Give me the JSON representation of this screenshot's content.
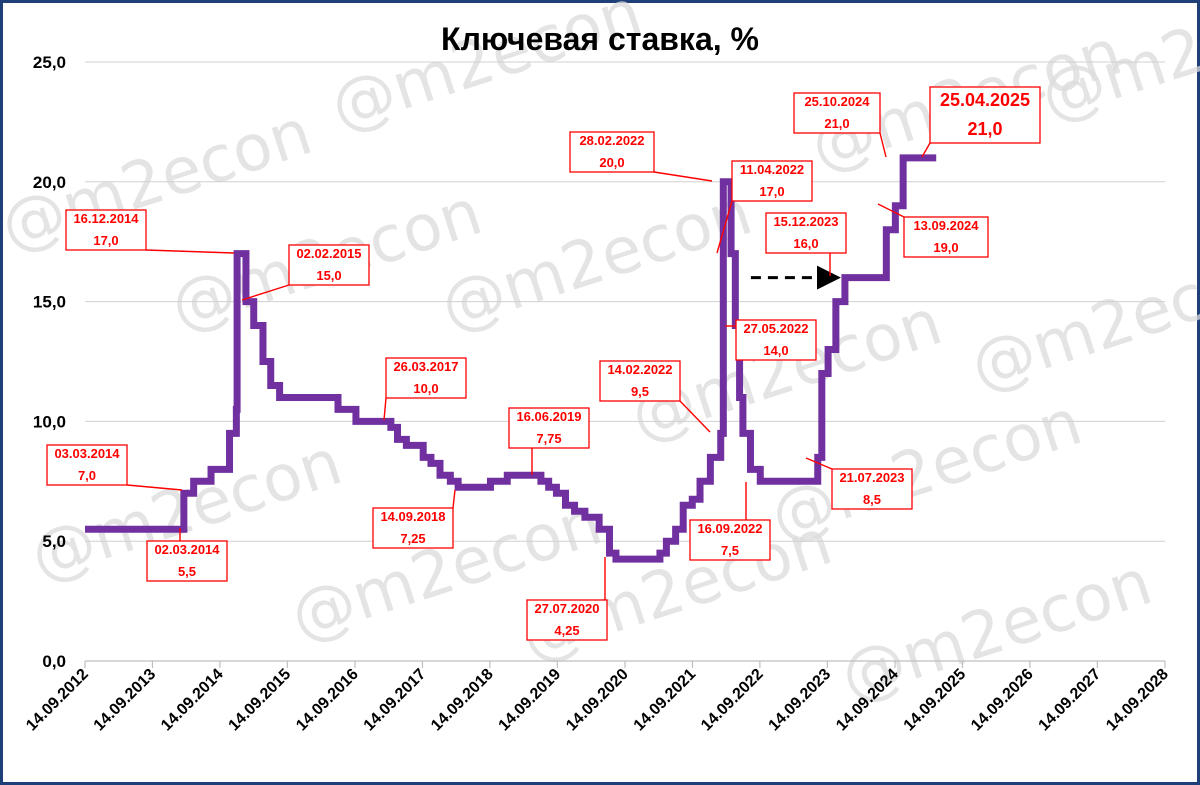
{
  "chart_data": {
    "type": "line",
    "title": "Ключевая ставка, %",
    "watermark": "@m2econ",
    "ylim": [
      0,
      25
    ],
    "yticks": [
      "0,0",
      "5,0",
      "10,0",
      "15,0",
      "20,0",
      "25,0"
    ],
    "xticks": [
      "14.09.2012",
      "14.09.2013",
      "14.09.2014",
      "14.09.2015",
      "14.09.2016",
      "14.09.2017",
      "14.09.2018",
      "14.09.2019",
      "14.09.2020",
      "14.09.2021",
      "14.09.2022",
      "14.09.2023",
      "14.09.2024",
      "14.09.2025",
      "14.09.2026",
      "14.09.2027",
      "14.09.2028"
    ],
    "grid": true,
    "colors": {
      "line": "#7030a0",
      "annotation": "#ff0000",
      "arrow": "#000000",
      "frame": "#1f3f78"
    },
    "series": [
      {
        "x": [
          "2012-09-14",
          "2014-03-02",
          "2014-03-03",
          "2014-04-25",
          "2014-07-28",
          "2014-11-05",
          "2014-12-12",
          "2014-12-16",
          "2015-02-02",
          "2015-03-16",
          "2015-05-05",
          "2015-06-16",
          "2015-08-03",
          "2016-06-14",
          "2016-09-19",
          "2017-03-27",
          "2017-05-02",
          "2017-06-19",
          "2017-09-18",
          "2017-10-30",
          "2017-12-18",
          "2018-02-12",
          "2018-03-26",
          "2018-09-17",
          "2018-12-17",
          "2019-06-17",
          "2019-07-29",
          "2019-09-09",
          "2019-10-28",
          "2019-12-16",
          "2020-02-10",
          "2020-04-27",
          "2020-06-22",
          "2020-07-27",
          "2021-03-22",
          "2021-04-26",
          "2021-06-15",
          "2021-07-26",
          "2021-09-13",
          "2021-10-25",
          "2021-12-20",
          "2022-02-14",
          "2022-02-28",
          "2022-04-11",
          "2022-05-04",
          "2022-05-27",
          "2022-06-14",
          "2022-07-25",
          "2022-09-16",
          "2023-07-24",
          "2023-08-15",
          "2023-09-18",
          "2023-10-30",
          "2023-12-18",
          "2024-07-29",
          "2024-09-16",
          "2024-10-28",
          "2025-04-25"
        ],
        "y": [
          5.5,
          5.5,
          7.0,
          7.5,
          8.0,
          9.5,
          10.5,
          17.0,
          15.0,
          14.0,
          12.5,
          11.5,
          11.0,
          10.5,
          10.0,
          9.75,
          9.25,
          9.0,
          8.5,
          8.25,
          7.75,
          7.5,
          7.25,
          7.5,
          7.75,
          7.5,
          7.25,
          7.0,
          6.5,
          6.25,
          6.0,
          5.5,
          4.5,
          4.25,
          4.5,
          5.0,
          5.5,
          6.5,
          6.75,
          7.5,
          8.5,
          9.5,
          20.0,
          17.0,
          14.0,
          11.0,
          9.5,
          8.0,
          7.5,
          8.5,
          12.0,
          13.0,
          15.0,
          16.0,
          18.0,
          19.0,
          21.0,
          21.0
        ]
      }
    ],
    "annotations": [
      {
        "date": "03.03.2014",
        "value": "7,0"
      },
      {
        "date": "02.03.2014",
        "value": "5,5"
      },
      {
        "date": "16.12.2014",
        "value": "17,0"
      },
      {
        "date": "02.02.2015",
        "value": "15,0"
      },
      {
        "date": "26.03.2017",
        "value": "10,0"
      },
      {
        "date": "14.09.2018",
        "value": "7,25"
      },
      {
        "date": "16.06.2019",
        "value": "7,75"
      },
      {
        "date": "27.07.2020",
        "value": "4,25"
      },
      {
        "date": "14.02.2022",
        "value": "9,5"
      },
      {
        "date": "28.02.2022",
        "value": "20,0"
      },
      {
        "date": "11.04.2022",
        "value": "17,0"
      },
      {
        "date": "27.05.2022",
        "value": "14,0"
      },
      {
        "date": "16.09.2022",
        "value": "7,5"
      },
      {
        "date": "21.07.2023",
        "value": "8,5"
      },
      {
        "date": "15.12.2023",
        "value": "16,0"
      },
      {
        "date": "13.09.2024",
        "value": "19,0"
      },
      {
        "date": "25.10.2024",
        "value": "21,0"
      },
      {
        "date": "25.04.2025",
        "value": "21,0"
      }
    ],
    "arrow": {
      "from": "2022-06-14",
      "to": "2023-12-18",
      "value": 16.0,
      "style": "dashed"
    }
  }
}
